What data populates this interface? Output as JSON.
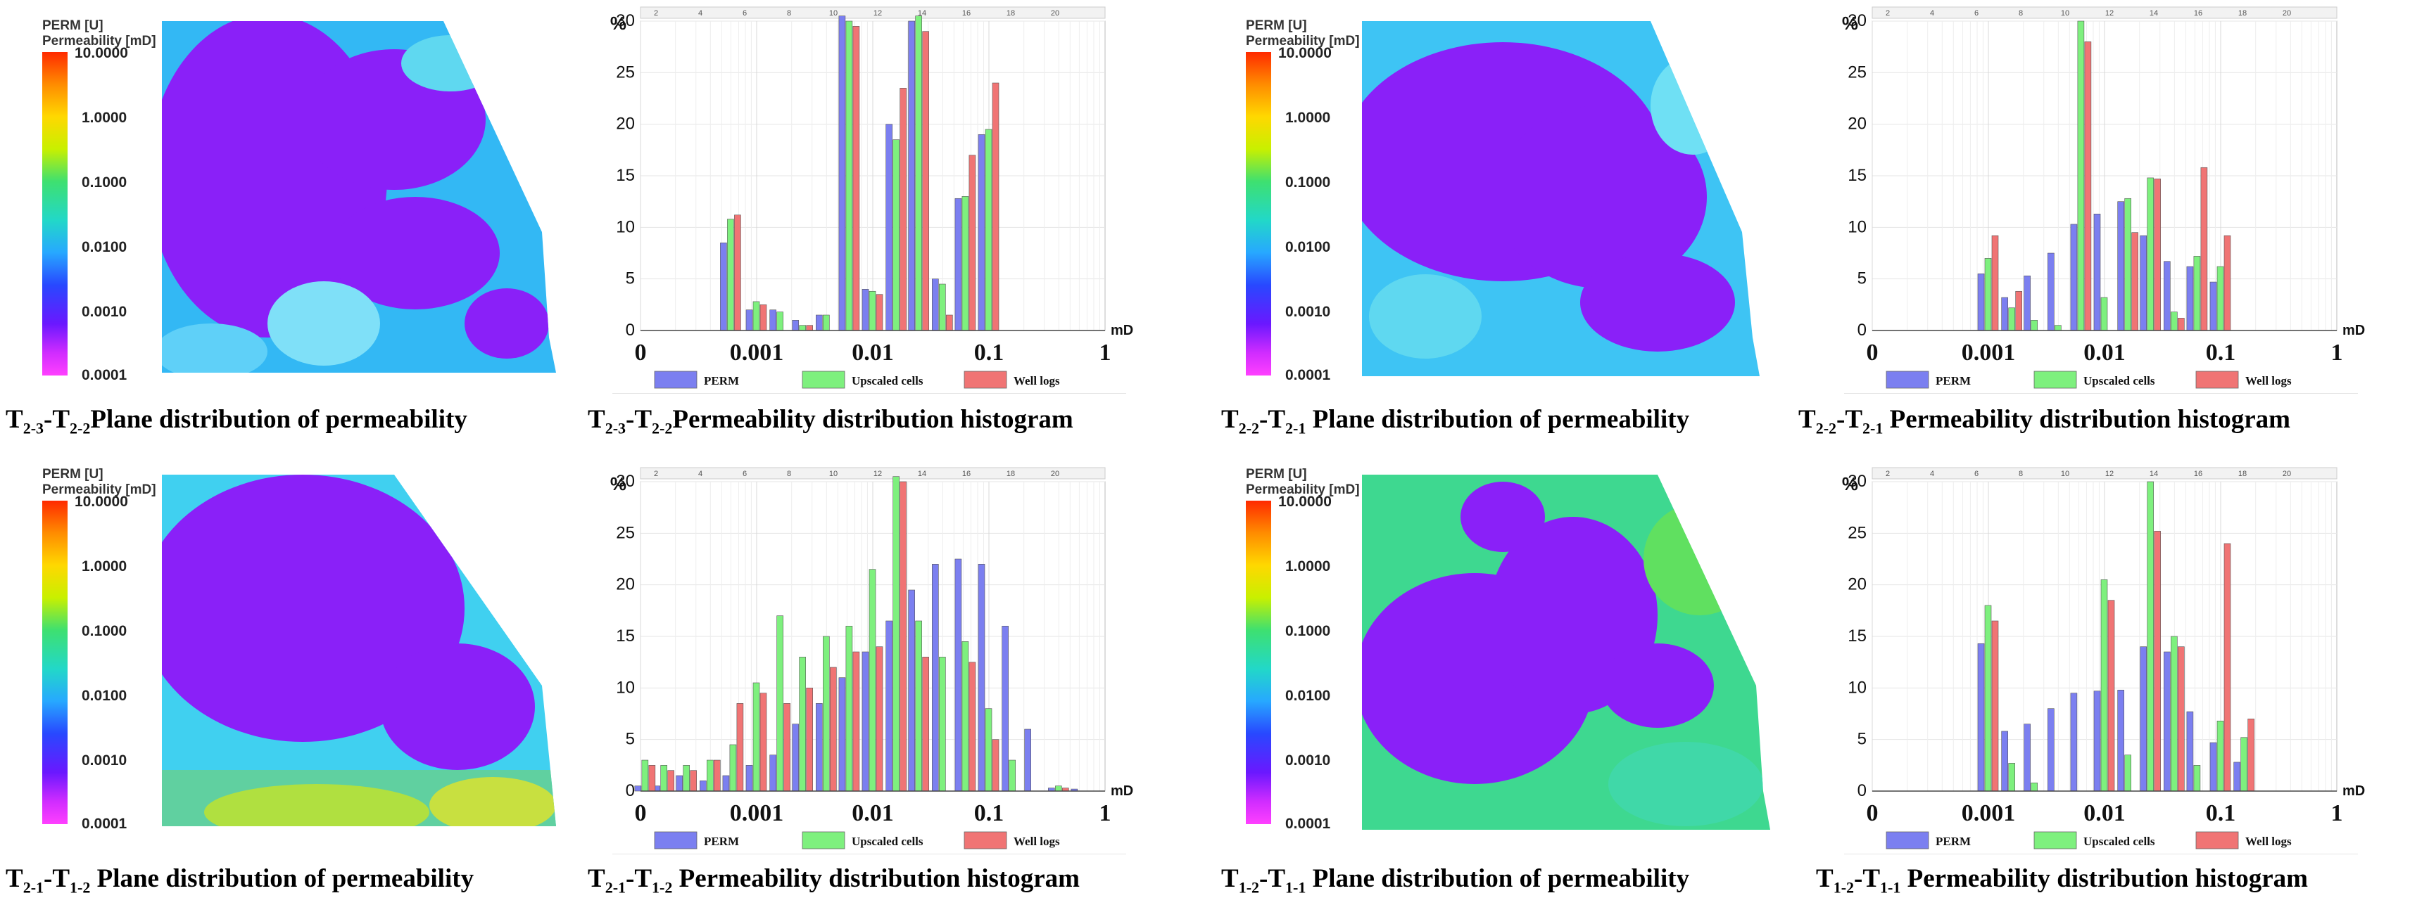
{
  "legend": {
    "title_line1": "PERM [U]",
    "title_line2": "Permeability [mD]",
    "ticks": [
      "10.0000",
      "1.0000",
      "0.1000",
      "0.0100",
      "0.0010",
      "0.0001"
    ]
  },
  "captions": {
    "p1_map": {
      "pre": "T",
      "s1": "2-3",
      "mid": "-T",
      "s2": "2-2",
      "post": "Plane distribution of permeability"
    },
    "p1_hist": {
      "pre": "T",
      "s1": "2-3",
      "mid": "-T",
      "s2": "2-2",
      "post": "Permeability distribution histogram"
    },
    "p2_map": {
      "pre": "T",
      "s1": "2-2",
      "mid": "-T",
      "s2": "2-1",
      "post": " Plane distribution of permeability"
    },
    "p2_hist": {
      "pre": "T",
      "s1": "2-2",
      "mid": "-T",
      "s2": "2-1",
      "post": " Permeability distribution histogram"
    },
    "p3_map": {
      "pre": "T",
      "s1": "2-1",
      "mid": "-T",
      "s2": "1-2",
      "post": " Plane distribution of permeability"
    },
    "p3_hist": {
      "pre": "T",
      "s1": "2-1",
      "mid": "-T",
      "s2": "1-2",
      "post": " Permeability distribution histogram"
    },
    "p4_map": {
      "pre": "T",
      "s1": "1-2",
      "mid": "-T",
      "s2": "1-1",
      "post": " Plane distribution of permeability"
    },
    "p4_hist": {
      "pre": "T",
      "s1": "1-2",
      "mid": "-T",
      "s2": "1-1",
      "post": " Permeability distribution histogram"
    }
  },
  "colors": {
    "perm": "#7b7ff0",
    "upscaled": "#7ef07e",
    "welllogs": "#f07474"
  },
  "chart_data": [
    {
      "type": "bar",
      "title": "T2-3-T2-2 Permeability distribution histogram",
      "ylabel": "%",
      "xlabel": "mD",
      "ylim": [
        0,
        30
      ],
      "xscale": "log",
      "xlim": [
        0.0001,
        1
      ],
      "x_ticks": [
        "0",
        "0.001",
        "0.01",
        "0.1",
        "1"
      ],
      "y_ticks": [
        "0",
        "5",
        "10",
        "15",
        "20",
        "25",
        "30"
      ],
      "top_ticks": [
        "2",
        "4",
        "6",
        "8",
        "10",
        "12",
        "14",
        "16",
        "18",
        "20"
      ],
      "legend": [
        "PERM",
        "Upscaled cells",
        "Well logs"
      ],
      "bins": [
        0.0006,
        0.001,
        0.0016,
        0.0025,
        0.004,
        0.0063,
        0.01,
        0.016,
        0.025,
        0.04,
        0.063,
        0.1,
        0.16,
        0.25
      ],
      "series": [
        {
          "name": "PERM",
          "values": [
            8.5,
            2,
            2,
            1,
            1.5,
            30.5,
            4,
            20,
            30,
            5,
            12.8,
            19,
            0,
            0
          ]
        },
        {
          "name": "Upscaled cells",
          "values": [
            10.8,
            2.8,
            1.8,
            0.5,
            1.5,
            30,
            3.8,
            18.5,
            30.5,
            4.5,
            13,
            19.5,
            0,
            0
          ]
        },
        {
          "name": "Well logs",
          "values": [
            11.2,
            2.5,
            0,
            0.5,
            0,
            29.5,
            3.5,
            23.5,
            29,
            1.5,
            17,
            24,
            0,
            0
          ]
        }
      ]
    },
    {
      "type": "bar",
      "title": "T2-2-T2-1 Permeability distribution histogram",
      "ylabel": "%",
      "xlabel": "mD",
      "ylim": [
        0,
        30
      ],
      "xscale": "log",
      "xlim": [
        0.0001,
        1
      ],
      "x_ticks": [
        "0",
        "0.001",
        "0.01",
        "0.1",
        "1"
      ],
      "y_ticks": [
        "0",
        "5",
        "10",
        "15",
        "20",
        "25",
        "30"
      ],
      "top_ticks": [
        "2",
        "4",
        "6",
        "8",
        "10",
        "12",
        "14",
        "16",
        "18",
        "20"
      ],
      "legend": [
        "PERM",
        "Upscaled cells",
        "Well logs"
      ],
      "bins": [
        0.001,
        0.0016,
        0.0025,
        0.004,
        0.0063,
        0.01,
        0.016,
        0.025,
        0.04,
        0.063,
        0.1,
        0.16
      ],
      "series": [
        {
          "name": "PERM",
          "values": [
            5.5,
            3.2,
            5.3,
            7.5,
            10.3,
            11.3,
            12.5,
            9.2,
            6.7,
            6.2,
            4.7,
            0
          ]
        },
        {
          "name": "Upscaled cells",
          "values": [
            7,
            2.2,
            1,
            0.5,
            30,
            3.2,
            12.8,
            14.8,
            1.8,
            7.2,
            6.2,
            0
          ]
        },
        {
          "name": "Well logs",
          "values": [
            9.2,
            3.8,
            0,
            0,
            28,
            0,
            9.5,
            14.7,
            1.2,
            15.8,
            9.2,
            0
          ]
        }
      ]
    },
    {
      "type": "bar",
      "title": "T2-1-T1-2 Permeability distribution histogram",
      "ylabel": "%",
      "xlabel": "mD",
      "ylim": [
        0,
        30
      ],
      "xscale": "log",
      "xlim": [
        0.0001,
        1
      ],
      "x_ticks": [
        "0",
        "0.001",
        "0.01",
        "0.1",
        "1"
      ],
      "y_ticks": [
        "0",
        "5",
        "10",
        "15",
        "20",
        "25",
        "30"
      ],
      "top_ticks": [
        "2",
        "4",
        "6",
        "8",
        "10",
        "12",
        "14",
        "16",
        "18",
        "20"
      ],
      "legend": [
        "PERM",
        "Upscaled cells",
        "Well logs"
      ],
      "bins": [
        0.00011,
        0.00016,
        0.00025,
        0.0004,
        0.00063,
        0.001,
        0.0016,
        0.0025,
        0.004,
        0.0063,
        0.01,
        0.016,
        0.025,
        0.04,
        0.063,
        0.1,
        0.16,
        0.25,
        0.4,
        0.63
      ],
      "series": [
        {
          "name": "PERM",
          "values": [
            0.5,
            0.5,
            1.5,
            1,
            1.5,
            2.5,
            3.5,
            6.5,
            8.5,
            11,
            13.5,
            16.5,
            19.5,
            22,
            22.5,
            22,
            16,
            6,
            0.3,
            0.2
          ]
        },
        {
          "name": "Upscaled cells",
          "values": [
            3,
            2.5,
            2.5,
            3,
            4.5,
            10.5,
            17,
            13,
            15,
            16,
            21.5,
            30.5,
            16.5,
            13,
            14.5,
            8,
            3,
            0,
            0.5,
            0
          ]
        },
        {
          "name": "Well logs",
          "values": [
            2.5,
            2,
            2,
            3,
            8.5,
            9.5,
            8.5,
            10,
            12,
            13.5,
            14,
            30,
            13,
            0,
            12.5,
            5,
            0,
            0,
            0.3,
            0
          ]
        }
      ]
    },
    {
      "type": "bar",
      "title": "T1-2-T1-1 Permeability distribution histogram",
      "ylabel": "%",
      "xlabel": "mD",
      "ylim": [
        0,
        30
      ],
      "xscale": "log",
      "xlim": [
        0.0001,
        1
      ],
      "x_ticks": [
        "0",
        "0.001",
        "0.01",
        "0.1",
        "1"
      ],
      "y_ticks": [
        "0",
        "5",
        "10",
        "15",
        "20",
        "25",
        "30"
      ],
      "top_ticks": [
        "2",
        "4",
        "6",
        "8",
        "10",
        "12",
        "14",
        "16",
        "18",
        "20"
      ],
      "legend": [
        "PERM",
        "Upscaled cells",
        "Well logs"
      ],
      "bins": [
        0.001,
        0.0016,
        0.0025,
        0.004,
        0.0063,
        0.01,
        0.016,
        0.025,
        0.04,
        0.063,
        0.1,
        0.16
      ],
      "series": [
        {
          "name": "PERM",
          "values": [
            14.3,
            5.8,
            6.5,
            8,
            9.5,
            9.7,
            9.8,
            14,
            13.5,
            7.7,
            4.7,
            2.8
          ]
        },
        {
          "name": "Upscaled cells",
          "values": [
            18,
            2.7,
            0.8,
            0,
            0,
            20.5,
            3.5,
            30,
            15,
            2.5,
            6.8,
            5.2
          ]
        },
        {
          "name": "Well logs",
          "values": [
            16.5,
            0,
            0,
            0,
            0,
            18.5,
            0,
            25.2,
            14,
            0,
            24,
            7
          ]
        }
      ]
    }
  ]
}
